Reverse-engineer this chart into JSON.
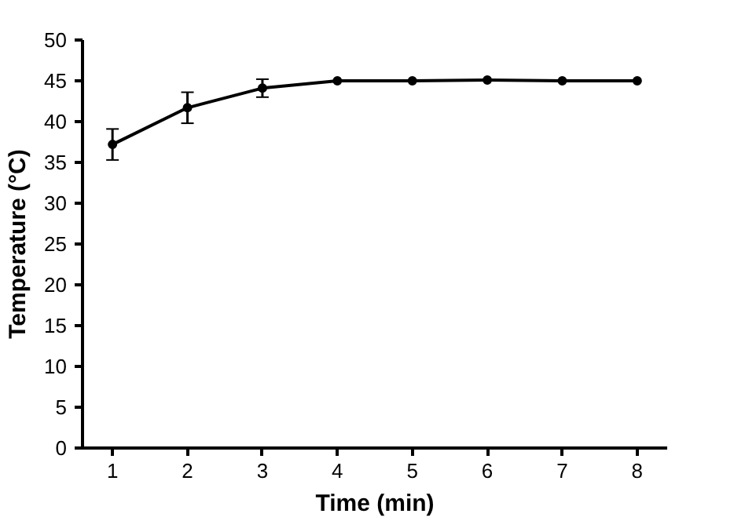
{
  "chart_data": {
    "type": "line",
    "xlabel": "Time (min)",
    "ylabel": "Temperature (°C)",
    "x": [
      1,
      2,
      3,
      4,
      5,
      6,
      7,
      8
    ],
    "series": [
      {
        "color": "#000000",
        "values": [
          37.2,
          41.7,
          44.1,
          45,
          45,
          45.1,
          45,
          45
        ],
        "errors": [
          1.9,
          1.9,
          1.1,
          null,
          null,
          null,
          null,
          null
        ]
      }
    ],
    "xlim": [
      0.6,
      8.4
    ],
    "xticks": [
      1,
      2,
      3,
      4,
      5,
      6,
      7,
      8
    ],
    "ylim": [
      0,
      50
    ],
    "yticks": [
      0,
      5,
      10,
      15,
      20,
      25,
      30,
      35,
      40,
      45,
      50
    ],
    "grid": false,
    "marker": "circle",
    "line_style": "solid"
  }
}
